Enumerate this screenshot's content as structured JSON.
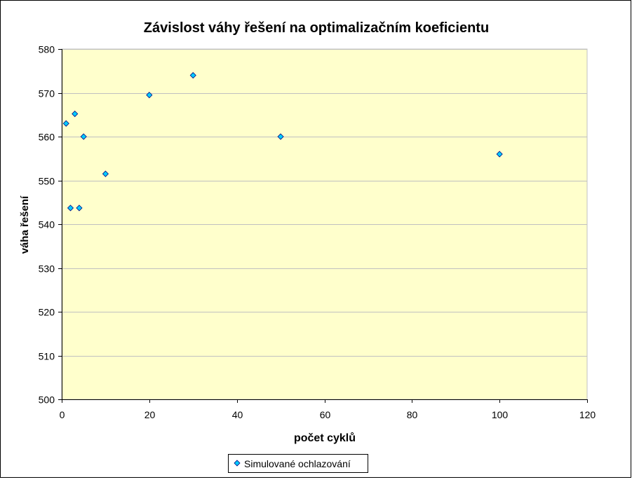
{
  "chart_data": {
    "type": "scatter",
    "title": "Závislost váhy řešení na optimalizačním koeficientu",
    "xlabel": "počet cyklů",
    "ylabel": "váha řešení",
    "xlim": [
      0,
      120
    ],
    "ylim": [
      500,
      580
    ],
    "x_ticks": [
      0,
      20,
      40,
      60,
      80,
      100,
      120
    ],
    "y_ticks": [
      500,
      510,
      520,
      530,
      540,
      550,
      560,
      570,
      580
    ],
    "grid": true,
    "legend_position": "bottom",
    "colors": {
      "plot_background": "#FFFFCC",
      "gridline": "#C0C0C0",
      "marker_fill": "#00CCFF",
      "marker_stroke": "#000080",
      "border": "#000000"
    },
    "series": [
      {
        "name": "Simulované ochlazování",
        "points": [
          {
            "x": 1,
            "y": 563
          },
          {
            "x": 2,
            "y": 543.7
          },
          {
            "x": 3,
            "y": 565.2
          },
          {
            "x": 4,
            "y": 543.7
          },
          {
            "x": 5,
            "y": 560
          },
          {
            "x": 10,
            "y": 551.5
          },
          {
            "x": 20,
            "y": 569.5
          },
          {
            "x": 30,
            "y": 574
          },
          {
            "x": 50,
            "y": 560
          },
          {
            "x": 100,
            "y": 556
          }
        ]
      }
    ]
  }
}
